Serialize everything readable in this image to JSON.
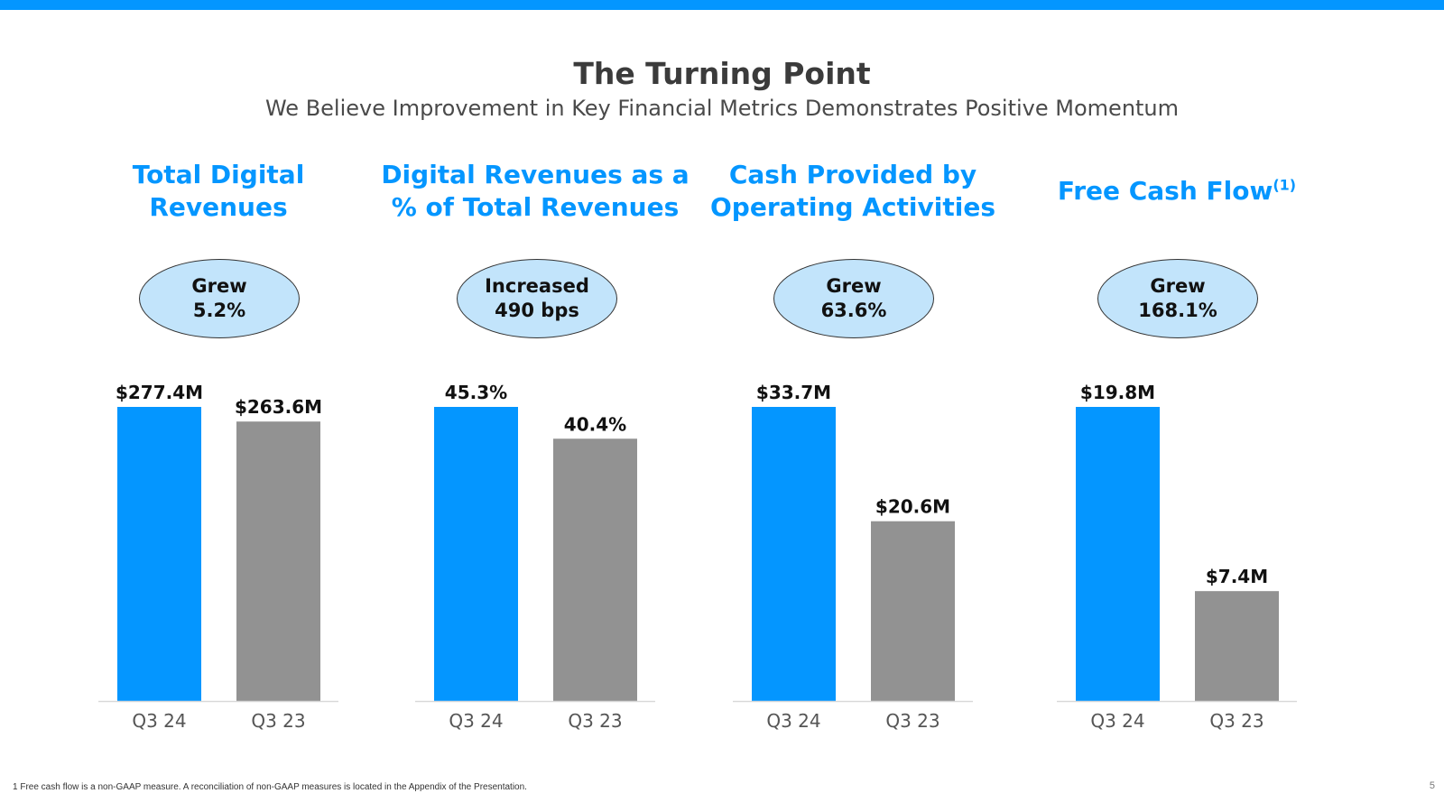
{
  "theme": {
    "accent": "#0496ff",
    "current_bar": "#0496ff",
    "prior_bar": "#929292",
    "bubble_fill": "#c2e4fb",
    "baseline": "#d9d9d9"
  },
  "slide": {
    "title": "The Turning Point",
    "subtitle": "We Believe Improvement in Key Financial Metrics Demonstrates Positive Momentum",
    "footnote": "1  Free cash flow is a  non-GAAP measure. A reconciliation of non-GAAP measures is located in the Appendix of the Presentation.",
    "page_number": "5"
  },
  "panels": [
    {
      "title_lines": [
        "Total Digital",
        "Revenues"
      ],
      "superscript": "",
      "bubble_lines": [
        "Grew",
        "5.2%"
      ]
    },
    {
      "title_lines": [
        "Digital Revenues as a",
        "% of Total Revenues"
      ],
      "superscript": "",
      "bubble_lines": [
        "Increased",
        "490 bps"
      ]
    },
    {
      "title_lines": [
        "Cash Provided by",
        "Operating Activities"
      ],
      "superscript": "",
      "bubble_lines": [
        "Grew",
        "63.6%"
      ]
    },
    {
      "title_lines": [
        "Free Cash Flow"
      ],
      "superscript": "(1)",
      "bubble_lines": [
        "Grew",
        "168.1%"
      ]
    }
  ],
  "chart_data": [
    {
      "type": "bar",
      "title": "Total Digital Revenues",
      "categories": [
        "Q3 24",
        "Q3 23"
      ],
      "values": [
        277.4,
        263.6
      ],
      "labels": [
        "$277.4M",
        "$263.6M"
      ],
      "ylim": [
        0,
        277.4
      ],
      "grid": false
    },
    {
      "type": "bar",
      "title": "Digital Revenues as a % of Total Revenues",
      "categories": [
        "Q3 24",
        "Q3 23"
      ],
      "values": [
        45.3,
        40.4
      ],
      "labels": [
        "45.3%",
        "40.4%"
      ],
      "ylim": [
        0,
        45.3
      ],
      "grid": false
    },
    {
      "type": "bar",
      "title": "Cash Provided by Operating Activities",
      "categories": [
        "Q3 24",
        "Q3 23"
      ],
      "values": [
        33.7,
        20.6
      ],
      "labels": [
        "$33.7M",
        "$20.6M"
      ],
      "ylim": [
        0,
        33.7
      ],
      "grid": false
    },
    {
      "type": "bar",
      "title": "Free Cash Flow",
      "categories": [
        "Q3 24",
        "Q3 23"
      ],
      "values": [
        19.8,
        7.4
      ],
      "labels": [
        "$19.8M",
        "$7.4M"
      ],
      "ylim": [
        0,
        19.8
      ],
      "grid": false
    }
  ]
}
